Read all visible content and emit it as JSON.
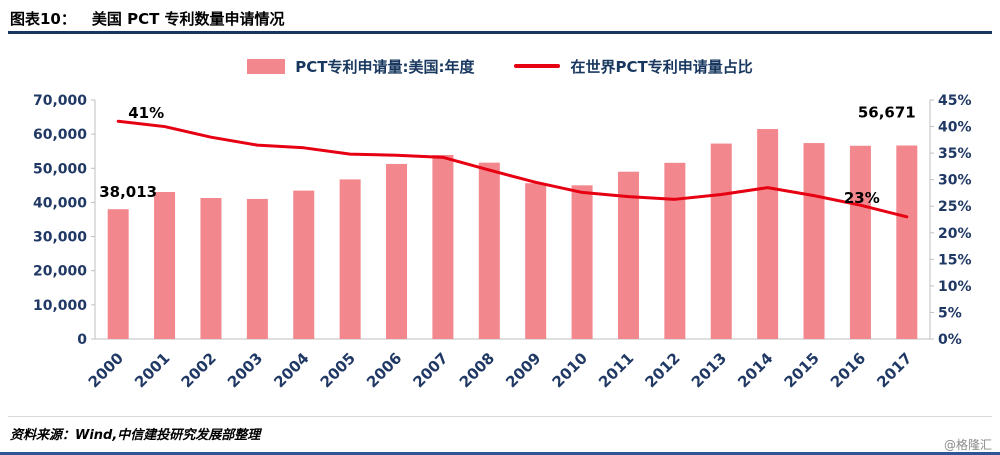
{
  "header": {
    "label": "图表10：",
    "title": "美国 PCT 专利数量申请情况"
  },
  "legend": [
    {
      "label": "PCT专利申请量:美国:年度",
      "swatch": "bar"
    },
    {
      "label": "在世界PCT专利申请量占比",
      "swatch": "line"
    }
  ],
  "colors": {
    "bar": "#f2878d",
    "line": "#e60012",
    "axis_text": "#1f3864",
    "header_rule": "#17375e",
    "bottom_rule": "#2f5597"
  },
  "chart_data": {
    "type": "bar",
    "categories": [
      "2000",
      "2001",
      "2002",
      "2003",
      "2004",
      "2005",
      "2006",
      "2007",
      "2008",
      "2009",
      "2010",
      "2011",
      "2012",
      "2013",
      "2014",
      "2015",
      "2016",
      "2017"
    ],
    "series": [
      {
        "name": "PCT专利申请量:美国:年度",
        "type": "bar",
        "axis": "left",
        "values": [
          38013,
          43055,
          41296,
          41028,
          43464,
          46742,
          51280,
          53900,
          51642,
          45627,
          45008,
          48996,
          51600,
          57239,
          61492,
          57385,
          56595,
          56671
        ]
      },
      {
        "name": "在世界PCT专利申请量占比",
        "type": "line",
        "axis": "right",
        "values": [
          41,
          40,
          38,
          36.5,
          36,
          34.8,
          34.6,
          34.2,
          31.8,
          29.5,
          27.6,
          26.8,
          26.3,
          27.2,
          28.5,
          27,
          25.2,
          23
        ]
      }
    ],
    "left_axis": {
      "min": 0,
      "max": 70000,
      "step": 10000,
      "tick_labels": [
        "0",
        "10,000",
        "20,000",
        "30,000",
        "40,000",
        "50,000",
        "60,000",
        "70,000"
      ]
    },
    "right_axis": {
      "min": 0,
      "max": 45,
      "step": 5,
      "tick_labels": [
        "0%",
        "5%",
        "10%",
        "15%",
        "20%",
        "25%",
        "30%",
        "35%",
        "40%",
        "45%"
      ]
    },
    "grid": false,
    "legend_position": "top",
    "annotations": [
      {
        "text": "38,013",
        "series": "bar",
        "index": 0
      },
      {
        "text": "41%",
        "series": "line",
        "index": 0
      },
      {
        "text": "56,671",
        "series": "bar",
        "index": 17
      },
      {
        "text": "23%",
        "series": "line",
        "index": 17
      }
    ]
  },
  "footer": {
    "source": "资料来源：Wind,中信建投研究发展部整理",
    "watermark": "@格隆汇"
  }
}
